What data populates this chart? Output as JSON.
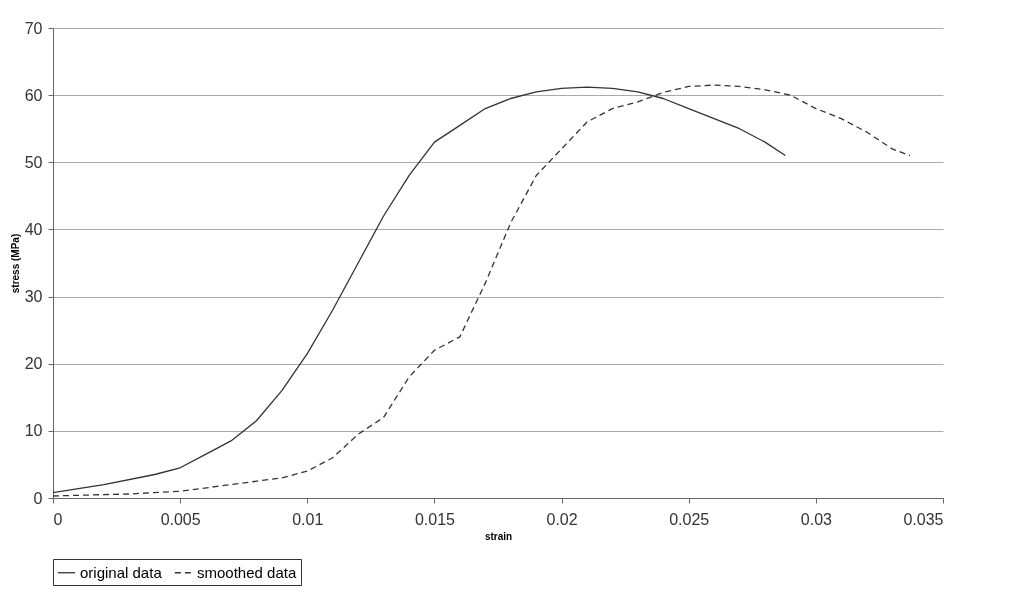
{
  "chart_data": {
    "type": "line",
    "xlabel": "strain",
    "ylabel": "stress (MPa)",
    "xlim": [
      0,
      0.035
    ],
    "ylim": [
      0,
      70
    ],
    "xticks": [
      0,
      0.005,
      0.01,
      0.015,
      0.02,
      0.025,
      0.03,
      0.035
    ],
    "yticks": [
      0,
      10,
      20,
      30,
      40,
      50,
      60,
      70
    ],
    "grid": "y",
    "legend": "bottom",
    "marker": "none",
    "series": [
      {
        "name": "original data",
        "color": "#333333",
        "line_style": "solid",
        "x": [
          0,
          0.002,
          0.004,
          0.005,
          0.006,
          0.007,
          0.008,
          0.009,
          0.01,
          0.011,
          0.012,
          0.013,
          0.014,
          0.015,
          0.016,
          0.017,
          0.018,
          0.019,
          0.02,
          0.021,
          0.022,
          0.023,
          0.024,
          0.025,
          0.026,
          0.027,
          0.028,
          0.0288
        ],
        "values": [
          0.8,
          2,
          3.5,
          4.5,
          6.5,
          8.5,
          11.5,
          16,
          21.5,
          28,
          35,
          42,
          48,
          53,
          55.5,
          58,
          59.5,
          60.5,
          61,
          61.2,
          61,
          60.5,
          59.5,
          58,
          56.5,
          55,
          53,
          51
        ]
      },
      {
        "name": "smoothed data",
        "color": "#333333",
        "line_style": "dashed",
        "x": [
          0,
          0.003,
          0.005,
          0.007,
          0.009,
          0.01,
          0.011,
          0.012,
          0.013,
          0.014,
          0.015,
          0.016,
          0.017,
          0.018,
          0.019,
          0.02,
          0.021,
          0.022,
          0.023,
          0.024,
          0.025,
          0.026,
          0.027,
          0.028,
          0.029,
          0.03,
          0.031,
          0.032,
          0.033,
          0.0337
        ],
        "values": [
          0.3,
          0.6,
          1,
          2,
          3,
          4,
          6,
          9.5,
          12,
          18,
          22,
          24,
          32,
          41,
          48,
          52,
          56,
          58,
          59,
          60.4,
          61.3,
          61.5,
          61.3,
          60.8,
          60,
          58,
          56.5,
          54.5,
          52,
          51
        ]
      }
    ]
  }
}
